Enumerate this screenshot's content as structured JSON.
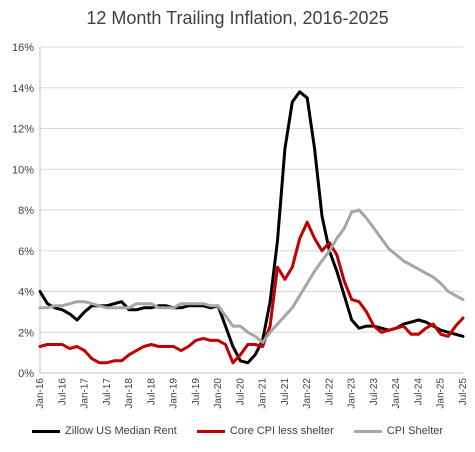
{
  "chart_data": {
    "type": "line",
    "title": "12 Month Trailing Inflation, 2016-2025",
    "xlabel": "",
    "ylabel": "",
    "ylim": [
      0,
      16
    ],
    "yticks": [
      "0%",
      "2%",
      "4%",
      "6%",
      "8%",
      "10%",
      "12%",
      "14%",
      "16%"
    ],
    "x_tick_labels": [
      "Jan-16",
      "Jul-16",
      "Jan-17",
      "Jul-17",
      "Jan-18",
      "Jul-18",
      "Jan-19",
      "Jul-19",
      "Jan-20",
      "Jul-20",
      "Jan-21",
      "Jul-21",
      "Jan-22",
      "Jul-22",
      "Jan-23",
      "Jul-23",
      "Jan-24",
      "Jul-24",
      "Jan-25",
      "Jul-25"
    ],
    "x_range": [
      "Jan-16",
      "Jul-25"
    ],
    "grid": "horizontal",
    "legend_position": "bottom",
    "series": [
      {
        "name": "Zillow US Median Rent",
        "color": "#000000",
        "points": [
          [
            "Jan-16",
            4.0
          ],
          [
            "Mar-16",
            3.4
          ],
          [
            "May-16",
            3.2
          ],
          [
            "Jul-16",
            3.1
          ],
          [
            "Sep-16",
            2.9
          ],
          [
            "Nov-16",
            2.6
          ],
          [
            "Jan-17",
            3.0
          ],
          [
            "Mar-17",
            3.3
          ],
          [
            "May-17",
            3.3
          ],
          [
            "Jul-17",
            3.3
          ],
          [
            "Sep-17",
            3.4
          ],
          [
            "Nov-17",
            3.5
          ],
          [
            "Jan-18",
            3.1
          ],
          [
            "Mar-18",
            3.1
          ],
          [
            "May-18",
            3.2
          ],
          [
            "Jul-18",
            3.2
          ],
          [
            "Sep-18",
            3.3
          ],
          [
            "Nov-18",
            3.3
          ],
          [
            "Jan-19",
            3.2
          ],
          [
            "Mar-19",
            3.2
          ],
          [
            "May-19",
            3.3
          ],
          [
            "Jul-19",
            3.3
          ],
          [
            "Sep-19",
            3.3
          ],
          [
            "Nov-19",
            3.2
          ],
          [
            "Jan-20",
            3.3
          ],
          [
            "Mar-20",
            2.3
          ],
          [
            "May-20",
            1.3
          ],
          [
            "Jul-20",
            0.6
          ],
          [
            "Sep-20",
            0.5
          ],
          [
            "Nov-20",
            0.9
          ],
          [
            "Jan-21",
            1.6
          ],
          [
            "Mar-21",
            3.5
          ],
          [
            "May-21",
            6.5
          ],
          [
            "Jul-21",
            11.0
          ],
          [
            "Sep-21",
            13.3
          ],
          [
            "Nov-21",
            13.8
          ],
          [
            "Jan-22",
            13.5
          ],
          [
            "Mar-22",
            11.0
          ],
          [
            "May-22",
            7.7
          ],
          [
            "Jul-22",
            6.0
          ],
          [
            "Sep-22",
            5.0
          ],
          [
            "Nov-22",
            3.8
          ],
          [
            "Jan-23",
            2.6
          ],
          [
            "Mar-23",
            2.2
          ],
          [
            "May-23",
            2.3
          ],
          [
            "Jul-23",
            2.3
          ],
          [
            "Sep-23",
            2.2
          ],
          [
            "Nov-23",
            2.1
          ],
          [
            "Jan-24",
            2.2
          ],
          [
            "Mar-24",
            2.4
          ],
          [
            "May-24",
            2.5
          ],
          [
            "Jul-24",
            2.6
          ],
          [
            "Sep-24",
            2.5
          ],
          [
            "Nov-24",
            2.3
          ],
          [
            "Jan-25",
            2.1
          ],
          [
            "Mar-25",
            2.0
          ],
          [
            "May-25",
            1.9
          ],
          [
            "Jul-25",
            1.8
          ]
        ]
      },
      {
        "name": "Core CPI less shelter",
        "color": "#c00000",
        "points": [
          [
            "Jan-16",
            1.3
          ],
          [
            "Mar-16",
            1.4
          ],
          [
            "May-16",
            1.4
          ],
          [
            "Jul-16",
            1.4
          ],
          [
            "Sep-16",
            1.2
          ],
          [
            "Nov-16",
            1.3
          ],
          [
            "Jan-17",
            1.1
          ],
          [
            "Mar-17",
            0.7
          ],
          [
            "May-17",
            0.5
          ],
          [
            "Jul-17",
            0.5
          ],
          [
            "Sep-17",
            0.6
          ],
          [
            "Nov-17",
            0.6
          ],
          [
            "Jan-18",
            0.9
          ],
          [
            "Mar-18",
            1.1
          ],
          [
            "May-18",
            1.3
          ],
          [
            "Jul-18",
            1.4
          ],
          [
            "Sep-18",
            1.3
          ],
          [
            "Nov-18",
            1.3
          ],
          [
            "Jan-19",
            1.3
          ],
          [
            "Mar-19",
            1.1
          ],
          [
            "May-19",
            1.3
          ],
          [
            "Jul-19",
            1.6
          ],
          [
            "Sep-19",
            1.7
          ],
          [
            "Nov-19",
            1.6
          ],
          [
            "Jan-20",
            1.6
          ],
          [
            "Mar-20",
            1.4
          ],
          [
            "May-20",
            0.5
          ],
          [
            "Jul-20",
            0.9
          ],
          [
            "Sep-20",
            1.4
          ],
          [
            "Nov-20",
            1.4
          ],
          [
            "Jan-21",
            1.3
          ],
          [
            "Mar-21",
            2.3
          ],
          [
            "May-21",
            5.2
          ],
          [
            "Jul-21",
            4.6
          ],
          [
            "Sep-21",
            5.2
          ],
          [
            "Nov-21",
            6.6
          ],
          [
            "Jan-22",
            7.4
          ],
          [
            "Mar-22",
            6.6
          ],
          [
            "May-22",
            6.0
          ],
          [
            "Jul-22",
            6.4
          ],
          [
            "Sep-22",
            5.8
          ],
          [
            "Nov-22",
            4.5
          ],
          [
            "Jan-23",
            3.6
          ],
          [
            "Mar-23",
            3.5
          ],
          [
            "May-23",
            3.0
          ],
          [
            "Jul-23",
            2.3
          ],
          [
            "Sep-23",
            2.0
          ],
          [
            "Nov-23",
            2.1
          ],
          [
            "Jan-24",
            2.2
          ],
          [
            "Mar-24",
            2.3
          ],
          [
            "May-24",
            1.9
          ],
          [
            "Jul-24",
            1.9
          ],
          [
            "Sep-24",
            2.2
          ],
          [
            "Nov-24",
            2.4
          ],
          [
            "Jan-25",
            1.9
          ],
          [
            "Mar-25",
            1.8
          ],
          [
            "May-25",
            2.3
          ],
          [
            "Jul-25",
            2.7
          ]
        ]
      },
      {
        "name": "CPI Shelter",
        "color": "#a6a6a6",
        "points": [
          [
            "Jan-16",
            3.2
          ],
          [
            "Mar-16",
            3.2
          ],
          [
            "May-16",
            3.3
          ],
          [
            "Jul-16",
            3.3
          ],
          [
            "Sep-16",
            3.4
          ],
          [
            "Nov-16",
            3.5
          ],
          [
            "Jan-17",
            3.5
          ],
          [
            "Mar-17",
            3.4
          ],
          [
            "May-17",
            3.3
          ],
          [
            "Jul-17",
            3.2
          ],
          [
            "Sep-17",
            3.2
          ],
          [
            "Nov-17",
            3.2
          ],
          [
            "Jan-18",
            3.2
          ],
          [
            "Mar-18",
            3.4
          ],
          [
            "May-18",
            3.4
          ],
          [
            "Jul-18",
            3.4
          ],
          [
            "Sep-18",
            3.2
          ],
          [
            "Nov-18",
            3.2
          ],
          [
            "Jan-19",
            3.2
          ],
          [
            "Mar-19",
            3.4
          ],
          [
            "May-19",
            3.4
          ],
          [
            "Jul-19",
            3.4
          ],
          [
            "Sep-19",
            3.4
          ],
          [
            "Nov-19",
            3.3
          ],
          [
            "Jan-20",
            3.3
          ],
          [
            "Mar-20",
            2.8
          ],
          [
            "May-20",
            2.3
          ],
          [
            "Jul-20",
            2.3
          ],
          [
            "Sep-20",
            2.0
          ],
          [
            "Nov-20",
            1.8
          ],
          [
            "Jan-21",
            1.5
          ],
          [
            "Mar-21",
            2.0
          ],
          [
            "May-21",
            2.4
          ],
          [
            "Jul-21",
            2.8
          ],
          [
            "Sep-21",
            3.2
          ],
          [
            "Nov-21",
            3.8
          ],
          [
            "Jan-22",
            4.4
          ],
          [
            "Mar-22",
            5.0
          ],
          [
            "May-22",
            5.5
          ],
          [
            "Jul-22",
            6.0
          ],
          [
            "Sep-22",
            6.6
          ],
          [
            "Nov-22",
            7.1
          ],
          [
            "Jan-23",
            7.9
          ],
          [
            "Mar-23",
            8.0
          ],
          [
            "May-23",
            7.6
          ],
          [
            "Jul-23",
            7.1
          ],
          [
            "Sep-23",
            6.6
          ],
          [
            "Nov-23",
            6.1
          ],
          [
            "Jan-24",
            5.8
          ],
          [
            "Mar-24",
            5.5
          ],
          [
            "May-24",
            5.3
          ],
          [
            "Jul-24",
            5.1
          ],
          [
            "Sep-24",
            4.9
          ],
          [
            "Nov-24",
            4.7
          ],
          [
            "Jan-25",
            4.4
          ],
          [
            "Mar-25",
            4.0
          ],
          [
            "May-25",
            3.8
          ],
          [
            "Jul-25",
            3.6
          ]
        ]
      }
    ]
  }
}
